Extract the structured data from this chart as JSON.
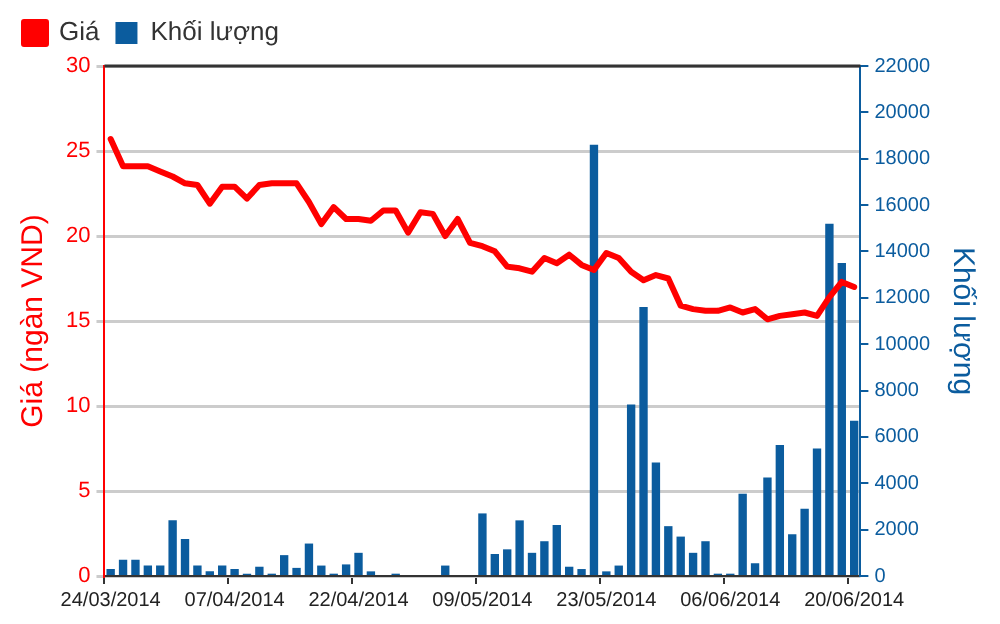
{
  "chart_data": {
    "type": "bar",
    "ylabel": "Giá (ngàn VND)",
    "y2label": "Khối lượng",
    "categories": [
      "24/03/2014",
      null,
      null,
      null,
      null,
      null,
      null,
      null,
      null,
      null,
      "07/04/2014",
      null,
      null,
      null,
      null,
      null,
      null,
      null,
      null,
      null,
      "22/04/2014",
      null,
      null,
      null,
      null,
      null,
      null,
      null,
      null,
      null,
      "09/05/2014",
      null,
      null,
      null,
      null,
      null,
      null,
      null,
      null,
      null,
      "23/05/2014",
      null,
      null,
      null,
      null,
      null,
      null,
      null,
      null,
      null,
      "06/06/2014",
      null,
      null,
      null,
      null,
      null,
      null,
      null,
      null,
      null,
      "20/06/2014"
    ],
    "series": [
      {
        "name": "Giá",
        "type": "line",
        "color": "#ff0000",
        "axis": "y",
        "values": [
          25.7,
          24.1,
          24.1,
          24.1,
          23.8,
          23.5,
          23.1,
          23.0,
          21.9,
          22.9,
          22.9,
          22.2,
          23.0,
          23.1,
          23.1,
          23.1,
          22.0,
          20.7,
          21.7,
          21.0,
          21.0,
          20.9,
          21.5,
          21.5,
          20.2,
          21.4,
          21.3,
          20.0,
          21.0,
          19.6,
          19.4,
          19.1,
          18.2,
          18.1,
          17.9,
          18.7,
          18.4,
          18.9,
          18.3,
          18.0,
          19.0,
          18.7,
          17.9,
          17.4,
          17.7,
          17.5,
          15.9,
          15.7,
          15.6,
          15.6,
          15.8,
          15.5,
          15.7,
          15.1,
          15.3,
          15.4,
          15.5,
          15.3,
          16.4,
          17.3,
          17.0
        ]
      },
      {
        "name": "Khối lượng",
        "color": "#0b5c9e",
        "axis": "y2",
        "values": [
          300,
          700,
          700,
          450,
          450,
          2400,
          1600,
          450,
          200,
          450,
          300,
          100,
          400,
          100,
          900,
          350,
          1400,
          450,
          100,
          500,
          1000,
          200,
          0,
          100,
          0,
          0,
          0,
          450,
          0,
          0,
          2700,
          950,
          1150,
          2400,
          1000,
          1500,
          2200,
          400,
          300,
          18600,
          200,
          450,
          7400,
          11600,
          4900,
          2150,
          1700,
          1000,
          1500,
          100,
          100,
          3550,
          550,
          4250,
          5650,
          1800,
          2900,
          5500,
          15200,
          13500,
          6700
        ]
      }
    ],
    "ylim": [
      0,
      30
    ],
    "yticks": [
      0,
      5,
      10,
      15,
      20,
      25,
      30
    ],
    "y2lim": [
      0,
      22000
    ],
    "y2ticks": [
      0,
      2000,
      4000,
      6000,
      8000,
      10000,
      12000,
      14000,
      16000,
      18000,
      20000,
      22000
    ],
    "grid": "y",
    "legend": "top left"
  }
}
